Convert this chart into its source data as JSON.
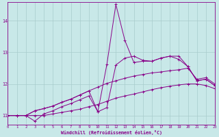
{
  "xlabel": "Windchill (Refroidissement éolien,°C)",
  "background_color": "#c8e8e8",
  "grid_color": "#a8cccc",
  "line_color": "#880088",
  "xlim": [
    0,
    23
  ],
  "ylim": [
    10.7,
    14.6
  ],
  "yticks": [
    11,
    12,
    13,
    14
  ],
  "xticks": [
    0,
    1,
    2,
    3,
    4,
    5,
    6,
    7,
    8,
    9,
    10,
    11,
    12,
    13,
    14,
    15,
    16,
    17,
    18,
    19,
    20,
    21,
    22,
    23
  ],
  "series": [
    [
      11.0,
      11.0,
      11.0,
      11.0,
      11.0,
      11.05,
      11.1,
      11.15,
      11.2,
      11.28,
      11.35,
      11.45,
      11.55,
      11.62,
      11.68,
      11.75,
      11.82,
      11.88,
      11.93,
      11.97,
      12.0,
      12.0,
      11.95,
      11.85
    ],
    [
      11.0,
      11.0,
      11.0,
      11.15,
      11.22,
      11.3,
      11.42,
      11.52,
      11.65,
      11.78,
      11.9,
      12.02,
      12.1,
      12.18,
      12.25,
      12.3,
      12.35,
      12.38,
      12.42,
      12.45,
      12.5,
      12.15,
      12.2,
      12.0
    ],
    [
      11.0,
      11.0,
      11.0,
      10.82,
      11.05,
      11.15,
      11.28,
      11.38,
      11.5,
      11.62,
      11.12,
      11.25,
      12.6,
      12.82,
      12.88,
      12.75,
      12.72,
      12.82,
      12.88,
      12.88,
      12.55,
      12.1,
      12.15,
      11.95
    ],
    [
      11.0,
      11.0,
      11.0,
      11.15,
      11.22,
      11.3,
      11.42,
      11.52,
      11.65,
      11.78,
      11.12,
      12.62,
      14.52,
      13.38,
      12.68,
      12.72,
      12.72,
      12.82,
      12.88,
      12.78,
      12.55,
      12.1,
      12.15,
      11.95
    ]
  ]
}
